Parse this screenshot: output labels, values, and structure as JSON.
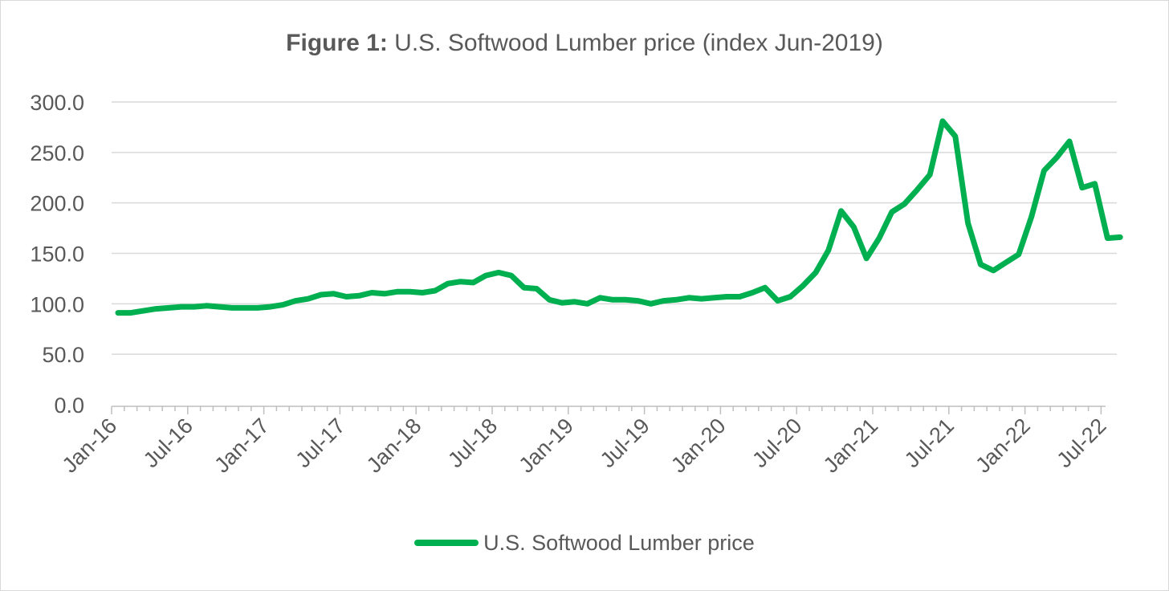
{
  "chart_data": {
    "type": "line",
    "title_bold": "Figure 1:",
    "title_rest": " U.S. Softwood Lumber price (index Jun-2019)",
    "xlabel": "",
    "ylabel": "",
    "ylim": [
      0,
      300
    ],
    "yticks": [
      "0.0",
      "50.0",
      "100.0",
      "150.0",
      "200.0",
      "250.0",
      "300.0"
    ],
    "grid": true,
    "legend_position": "bottom",
    "x_tick_labels": [
      "Jan-16",
      "Jul-16",
      "Jan-17",
      "Jul-17",
      "Jan-18",
      "Jul-18",
      "Jan-19",
      "Jul-19",
      "Jan-20",
      "Jul-20",
      "Jan-21",
      "Jul-21",
      "Jan-22",
      "Jul-22"
    ],
    "x_start": "Jan-16",
    "x_end": "Aug-22",
    "series": [
      {
        "name": "U.S. Softwood Lumber price",
        "color": "#00b050",
        "values": [
          91,
          91,
          93,
          95,
          96,
          97,
          97,
          98,
          97,
          96,
          96,
          96,
          97,
          99,
          103,
          105,
          109,
          110,
          107,
          108,
          111,
          110,
          112,
          112,
          111,
          113,
          120,
          122,
          121,
          128,
          131,
          128,
          116,
          115,
          104,
          101,
          102,
          100,
          106,
          104,
          104,
          103,
          100,
          103,
          104,
          106,
          105,
          106,
          107,
          107,
          111,
          116,
          103,
          107,
          118,
          131,
          153,
          192,
          176,
          145,
          165,
          191,
          199,
          213,
          228,
          281,
          266,
          180,
          139,
          133,
          141,
          149,
          186,
          232,
          245,
          261,
          215,
          219,
          165,
          166
        ]
      }
    ]
  },
  "legend": {
    "label": "U.S. Softwood Lumber price"
  },
  "colors": {
    "grid": "#d9d9d9",
    "axis": "#bfbfbf",
    "text": "#595959"
  }
}
